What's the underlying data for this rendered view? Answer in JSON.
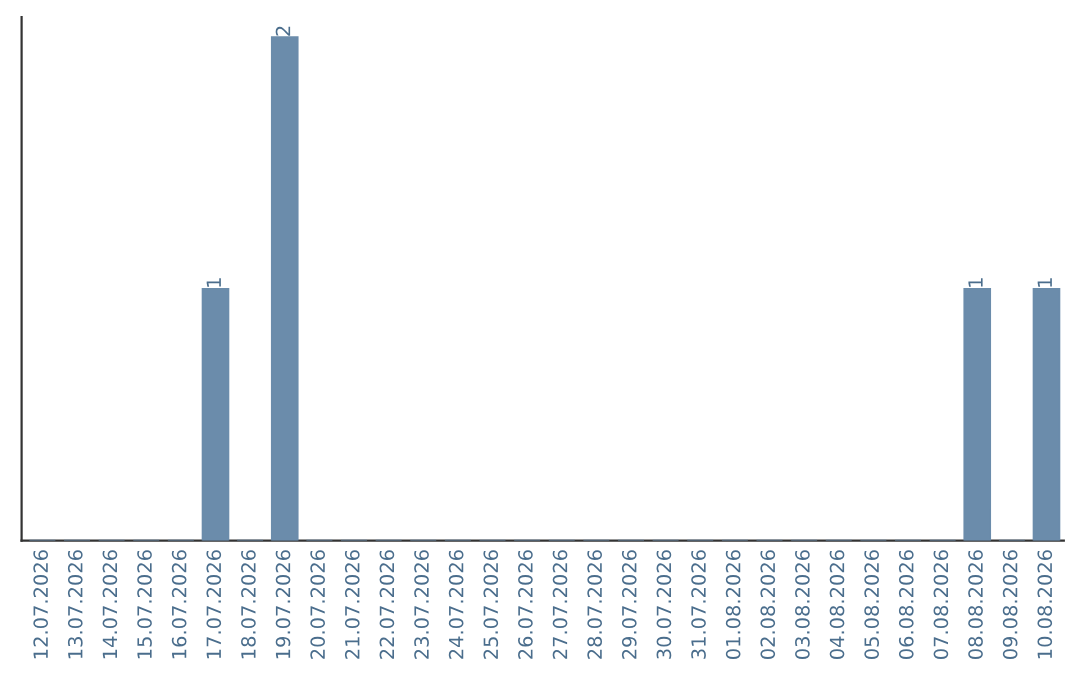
{
  "chart_data": {
    "type": "bar",
    "categories": [
      "12.07.2026",
      "13.07.2026",
      "14.07.2026",
      "15.07.2026",
      "16.07.2026",
      "17.07.2026",
      "18.07.2026",
      "19.07.2026",
      "20.07.2026",
      "21.07.2026",
      "22.07.2026",
      "23.07.2026",
      "24.07.2026",
      "25.07.2026",
      "26.07.2026",
      "27.07.2026",
      "28.07.2026",
      "29.07.2026",
      "30.07.2026",
      "31.07.2026",
      "01.08.2026",
      "02.08.2026",
      "03.08.2026",
      "04.08.2026",
      "05.08.2026",
      "06.08.2026",
      "07.08.2026",
      "08.08.2026",
      "09.08.2026",
      "10.08.2026"
    ],
    "values": [
      0,
      0,
      0,
      0,
      0,
      1,
      0,
      2,
      0,
      0,
      0,
      0,
      0,
      0,
      0,
      0,
      0,
      0,
      0,
      0,
      0,
      0,
      0,
      0,
      0,
      0,
      0,
      1,
      0,
      1
    ],
    "value_labels": [
      null,
      null,
      null,
      null,
      null,
      "1",
      null,
      "2",
      null,
      null,
      null,
      null,
      null,
      null,
      null,
      null,
      null,
      null,
      null,
      null,
      null,
      null,
      null,
      null,
      null,
      null,
      null,
      "1",
      null,
      "1"
    ],
    "color": "#6b8cab",
    "grid": false,
    "legend": false,
    "tick_labels": "x"
  }
}
